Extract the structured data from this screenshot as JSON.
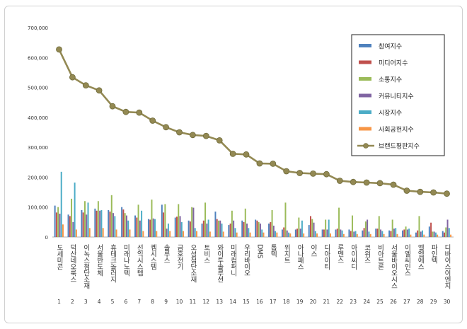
{
  "chart_data": {
    "type": "bar",
    "title": "",
    "xlabel": "",
    "ylabel": "",
    "ylim": [
      0,
      700000
    ],
    "yticks": [
      "0",
      "100,000",
      "200,000",
      "300,000",
      "400,000",
      "500,000",
      "600,000",
      "700,000"
    ],
    "grid": false,
    "legend_position": "top-right",
    "categories": [
      "도세미콘",
      "덕산네오룩스",
      "이녹스첨단소재",
      "서울반도체",
      "휴테크놀러지",
      "미래나노텍",
      "선익시스템",
      "켐시스템",
      "솔루스",
      "금호전기",
      "오성첨단소재",
      "토비스",
      "와이투솔루션",
      "미래컴퍼니",
      "우리바이오",
      "DMS",
      "톱텍",
      "위지트",
      "아나패스",
      "야스",
      "디아이티",
      "루멘스",
      "아이씨디",
      "코위즈",
      "비아트론",
      "서울바이오시스",
      "이엘씨인스",
      "엘엠에스",
      "파인텍",
      "디바이스이엔지"
    ],
    "ranks": [
      "1",
      "2",
      "3",
      "4",
      "5",
      "6",
      "7",
      "8",
      "9",
      "10",
      "11",
      "12",
      "13",
      "14",
      "15",
      "16",
      "17",
      "18",
      "19",
      "20",
      "21",
      "22",
      "23",
      "24",
      "25",
      "26",
      "27",
      "28",
      "29",
      "30"
    ],
    "series": [
      {
        "name": "참여지수",
        "kind": "bar",
        "color": "#4F81BD",
        "values": [
          105000,
          75000,
          90000,
          95000,
          90000,
          100000,
          72000,
          60000,
          108000,
          65000,
          55000,
          45000,
          85000,
          40000,
          55000,
          58000,
          45000,
          25000,
          25000,
          40000,
          25000,
          25000,
          25000,
          22000,
          28000,
          22000,
          22000,
          15000,
          35000,
          20000
        ]
      },
      {
        "name": "미디어지수",
        "kind": "bar",
        "color": "#C0504D",
        "values": [
          82000,
          70000,
          82000,
          88000,
          85000,
          92000,
          65000,
          58000,
          82000,
          68000,
          52000,
          55000,
          60000,
          45000,
          50000,
          55000,
          50000,
          32000,
          28000,
          70000,
          25000,
          28000,
          20000,
          30000,
          28000,
          20000,
          25000,
          22000,
          48000,
          15000
        ]
      },
      {
        "name": "소통지수",
        "kind": "bar",
        "color": "#9BBB59",
        "values": [
          100000,
          128000,
          120000,
          120000,
          140000,
          80000,
          108000,
          125000,
          110000,
          110000,
          100000,
          115000,
          55000,
          88000,
          95000,
          50000,
          90000,
          115000,
          65000,
          60000,
          58000,
          98000,
          72000,
          52000,
          70000,
          58000,
          35000,
          70000,
          18000,
          32000
        ]
      },
      {
        "name": "커뮤니티지수",
        "kind": "bar",
        "color": "#8064A2",
        "values": [
          78000,
          50000,
          75000,
          88000,
          80000,
          72000,
          55000,
          62000,
          28000,
          70000,
          98000,
          45000,
          55000,
          55000,
          45000,
          45000,
          38000,
          22000,
          28000,
          48000,
          25000,
          25000,
          18000,
          58000,
          25000,
          28000,
          25000,
          18000,
          18000,
          58000
        ]
      },
      {
        "name": "시장지수",
        "kind": "bar",
        "color": "#4BACC6",
        "values": [
          218000,
          182000,
          115000,
          90000,
          70000,
          55000,
          88000,
          60000,
          45000,
          50000,
          30000,
          58000,
          45000,
          30000,
          30000,
          25000,
          20000,
          15000,
          55000,
          20000,
          58000,
          22000,
          20000,
          18000,
          20000,
          30000,
          28000,
          22000,
          15000,
          30000
        ]
      },
      {
        "name": "사회공헌지수",
        "kind": "bar",
        "color": "#F79646",
        "values": [
          42000,
          25000,
          30000,
          30000,
          25000,
          25000,
          20000,
          20000,
          20000,
          20000,
          20000,
          18000,
          18000,
          15000,
          15000,
          15000,
          15000,
          12000,
          12000,
          12000,
          12000,
          10000,
          10000,
          10000,
          10000,
          10000,
          8000,
          8000,
          8000,
          8000
        ]
      },
      {
        "name": "브랜드평판지수",
        "kind": "line",
        "color": "#938953",
        "values": [
          627000,
          534000,
          507000,
          490000,
          437000,
          418000,
          416000,
          389000,
          367000,
          350000,
          341000,
          338000,
          323000,
          278000,
          276000,
          246000,
          245000,
          220000,
          214000,
          212000,
          210000,
          188000,
          184000,
          182000,
          180000,
          175000,
          155000,
          151000,
          149000,
          145000
        ]
      }
    ]
  }
}
